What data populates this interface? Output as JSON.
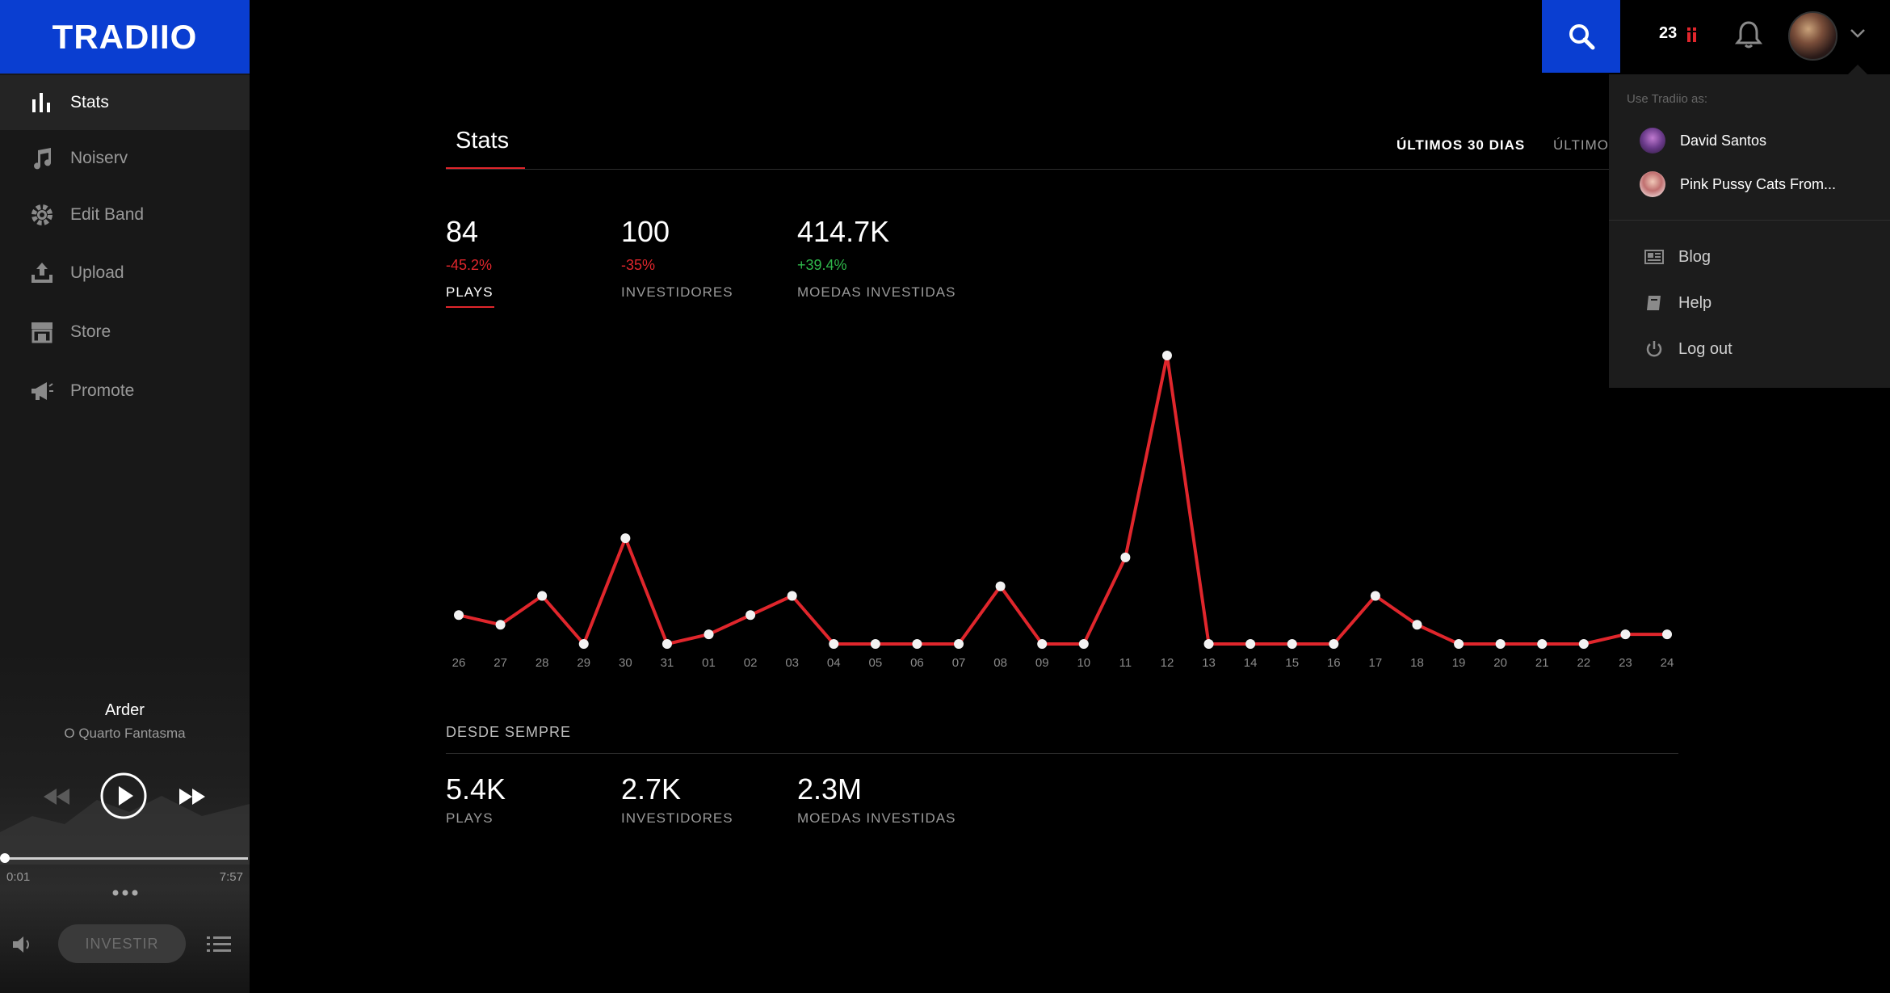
{
  "brand": {
    "logo_text": "TRADIIO"
  },
  "sidebar": {
    "items": [
      {
        "label": "Stats",
        "icon": "bar-chart-icon",
        "active": true
      },
      {
        "label": "Noiserv",
        "icon": "music-note-icon",
        "active": false
      },
      {
        "label": "Edit Band",
        "icon": "gear-icon",
        "active": false
      },
      {
        "label": "Upload",
        "icon": "upload-icon",
        "active": false
      },
      {
        "label": "Store",
        "icon": "store-icon",
        "active": false
      },
      {
        "label": "Promote",
        "icon": "megaphone-icon",
        "active": false
      }
    ]
  },
  "player": {
    "title": "Arder",
    "artist": "O Quarto Fantasma",
    "time_current": "0:01",
    "time_total": "7:57",
    "progress": 0.002,
    "invest_label": "INVESTIR"
  },
  "topbar": {
    "coin_count": "23"
  },
  "dropdown": {
    "use_as_label": "Use Tradiio as:",
    "accounts": [
      {
        "name": "David Santos"
      },
      {
        "name": "Pink Pussy Cats From..."
      }
    ],
    "links": [
      {
        "label": "Blog",
        "icon": "newspaper-icon"
      },
      {
        "label": "Help",
        "icon": "book-icon"
      },
      {
        "label": "Log out",
        "icon": "power-icon"
      }
    ]
  },
  "main": {
    "tab_label": "Stats",
    "range_selected": "ÚLTIMOS 30 DIAS",
    "range_next": "ÚLTIMOS",
    "stats": [
      {
        "value": "84",
        "change": "-45.2%",
        "label": "PLAYS",
        "trend": "neg"
      },
      {
        "value": "100",
        "change": "-35%",
        "label": "INVESTIDORES",
        "trend": "neg"
      },
      {
        "value": "414.7K",
        "change": "+39.4%",
        "label": "MOEDAS INVESTIDAS",
        "trend": "pos"
      }
    ],
    "alltime_label": "DESDE SEMPRE",
    "alltime": [
      {
        "value": "5.4K",
        "label": "PLAYS"
      },
      {
        "value": "2.7K",
        "label": "INVESTIDORES"
      },
      {
        "value": "2.3M",
        "label": "MOEDAS INVESTIDAS"
      }
    ]
  },
  "colors": {
    "accent_blue": "#0a3ed1",
    "accent_red": "#e0262c",
    "positive_green": "#2fb84b"
  },
  "chart_data": {
    "type": "line",
    "x": [
      "26",
      "27",
      "28",
      "29",
      "30",
      "31",
      "01",
      "02",
      "03",
      "04",
      "05",
      "06",
      "07",
      "08",
      "09",
      "10",
      "11",
      "12",
      "13",
      "14",
      "15",
      "16",
      "17",
      "18",
      "19",
      "20",
      "21",
      "22",
      "23",
      "24"
    ],
    "values": [
      3,
      2,
      5,
      0,
      11,
      0,
      1,
      3,
      5,
      0,
      0,
      0,
      0,
      6,
      0,
      0,
      9,
      30,
      0,
      0,
      0,
      0,
      5,
      2,
      0,
      0,
      0,
      0,
      1,
      1
    ],
    "ylim": [
      0,
      30
    ],
    "grid": false
  }
}
